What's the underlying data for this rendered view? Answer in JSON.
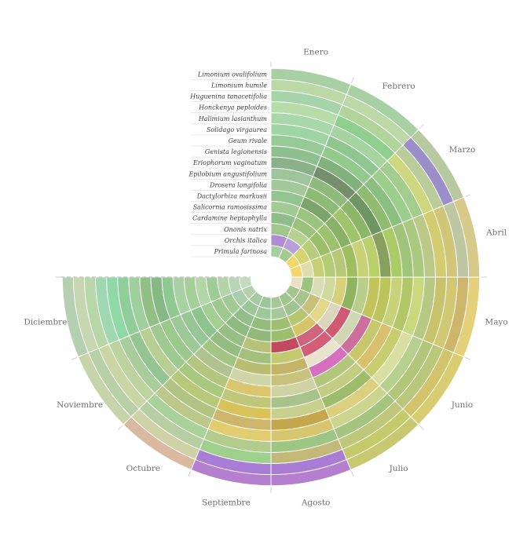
{
  "chart_data": {
    "type": "radial-calendar",
    "months": [
      "Enero",
      "Febrero",
      "Marzo",
      "Abril",
      "Mayo",
      "Junio",
      "Julio",
      "Agosto",
      "Septiembre",
      "Octubre",
      "Noviembre",
      "Diciembre"
    ],
    "species": [
      "Limonium ovalifolium",
      "Limonium humile",
      "Huguenina tanacetifolia",
      "Honckenya peploides",
      "Halimium lasianthum",
      "Solidago virgaurea",
      "Geum rivale",
      "Genista legionensis",
      "Eriophorum vaginatum",
      "Epilobium angustifolium",
      "Drosera longifolia",
      "Dactylorhiza markusii",
      "Salicornia ramosissima",
      "Cardamine heptaphylla",
      "Ononis natrix",
      "Orchis italica",
      "Primula farinosa"
    ],
    "monthly_colors": [
      [
        "#a9cfa5",
        "#a9cfa5",
        "#b8c9a0",
        "#d6c98a",
        "#e3d078",
        "#d9cd72",
        "#c8c873",
        "#b57fd0",
        "#b57fd0",
        "#d9b9a0",
        "#c7d3a9",
        "#b5d0b0"
      ],
      [
        "#bcd8a6",
        "#bcd8a6",
        "#9a8fc9",
        "#bfc6a2",
        "#cdb56c",
        "#d3c46c",
        "#c4c96a",
        "#a97cd6",
        "#a97cd6",
        "#cfd2a7",
        "#b9d0a6",
        "#c5d7b0"
      ],
      [
        "#a6d3a9",
        "#b1d49c",
        "#b9cc99",
        "#cfc677",
        "#d1c873",
        "#b9c77b",
        "#bec77a",
        "#c2b979",
        "#9fcf8c",
        "#b7cda2",
        "#cad5a6",
        "#b9d6a9"
      ],
      [
        "#b7dba9",
        "#8ecf8f",
        "#cdd87e",
        "#d4cc70",
        "#c8c36b",
        "#b2c67a",
        "#a5c47d",
        "#9dc583",
        "#b3cb8c",
        "#a9d29a",
        "#bcd3a0",
        "#9fd8b0"
      ],
      [
        "#a8d8a9",
        "#a6d4a0",
        "#a4cc8c",
        "#bcc888",
        "#b6c982",
        "#b8d08f",
        "#cbd58d",
        "#d6c76f",
        "#e0cd6f",
        "#bcc78a",
        "#a8cc9a",
        "#8fd9a7"
      ],
      [
        "#9fd5a4",
        "#8fc690",
        "#9ccf8c",
        "#a8c97f",
        "#cbd97e",
        "#d8dfa0",
        "#dbd07e",
        "#c4a64b",
        "#cdb56c",
        "#b1c483",
        "#94c48f",
        "#8fce99"
      ],
      [
        "#97c997",
        "#94c98d",
        "#8bbf7f",
        "#9fc47a",
        "#b4c766",
        "#c8cd6e",
        "#9dbd6a",
        "#c9d08e",
        "#d8c35b",
        "#b7c979",
        "#b8cf94",
        "#9fcf9c"
      ],
      [
        "#8ebf8e",
        "#82b27c",
        "#8fbc6f",
        "#aacc67",
        "#c8d27a",
        "#d9c06b",
        "#c3cd82",
        "#a8c38a",
        "#bec77a",
        "#a8c87e",
        "#9ec991",
        "#91bf86"
      ],
      [
        "#8ab18a",
        "#758f6d",
        "#6f9563",
        "#889f5e",
        "#bcc55b",
        "#c7c86b",
        "#b2c779",
        "#cfd3a3",
        "#dbc670",
        "#b3c680",
        "#9bc88c",
        "#86b884"
      ],
      [
        "#9fc39a",
        "#8fba7c",
        "#8db668",
        "#b9cf6b",
        "#c3c45b",
        "#cc6f9a",
        "#d66fc0",
        "#c7c27c",
        "#cfd5a7",
        "#b0c28e",
        "#9dc996",
        "#90c98f"
      ],
      [
        "#a3c99b",
        "#8dbb73",
        "#a0c46a",
        "#c8d277",
        "#b9ce8a",
        "#cfd7b3",
        "#e9e3cd",
        "#c4b468",
        "#b8bd6f",
        "#a3c482",
        "#95c693",
        "#a8d1a4"
      ],
      [
        "#93c38e",
        "#7aa46a",
        "#8ab266",
        "#9fbd61",
        "#8fb460",
        "#d15a73",
        "#d45d78",
        "#c2c96e",
        "#a3c07c",
        "#96bc82",
        "#8bc58d",
        "#a3cf99"
      ],
      [
        "#a3c994",
        "#9bc47f",
        "#9dc26f",
        "#b6c976",
        "#d8cf7a",
        "#dbd6bc",
        "#cd667c",
        "#c24a5e",
        "#b7c179",
        "#98be83",
        "#a4cf93",
        "#b1d6a7"
      ],
      [
        "#8fbd89",
        "#9bc17a",
        "#9bbf69",
        "#b4cb73",
        "#cfd99c",
        "#e3d789",
        "#d6c46a",
        "#9dbd6f",
        "#92b87a",
        "#8fba82",
        "#9dc98e",
        "#9fcc96"
      ],
      [
        "#a0c68d",
        "#b6d290",
        "#b8cd7b",
        "#c5cf74",
        "#dadcb5",
        "#c9c17a",
        "#b4c770",
        "#9fbf70",
        "#95bc7d",
        "#93bd89",
        "#a2c993",
        "#b3d4a6"
      ],
      [
        "#b08cd3",
        "#b7a0d8",
        "#d6d46e",
        "#e0dcac",
        "#9cc47a",
        "#a6c48b",
        "#9fc490",
        "#a8c89b",
        "#9ec89a",
        "#9cc69a",
        "#a9ccaa",
        "#b9d5b6"
      ],
      [
        "#a6cf9f",
        "#a4c991",
        "#f0d86a",
        "#f1d66e",
        "#e9e1c6",
        "#a5c58d",
        "#9fc68c",
        "#a4c996",
        "#9ec59b",
        "#a5c9a1",
        "#b5d0ad",
        "#c3d8bd"
      ]
    ]
  }
}
